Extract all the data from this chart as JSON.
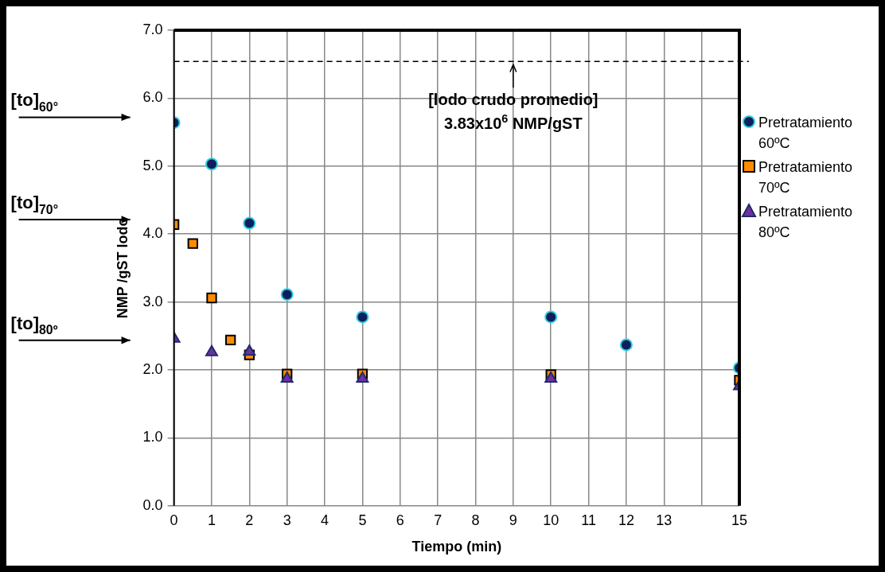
{
  "chart_data": {
    "type": "scatter",
    "xlabel": "Tiempo (min)",
    "ylabel": "NMP /gST lodo",
    "xlim": [
      0,
      15
    ],
    "xticks": [
      0,
      1,
      2,
      3,
      4,
      5,
      6,
      7,
      8,
      9,
      10,
      11,
      12,
      13,
      {
        "value": 14,
        "label": null
      },
      15
    ],
    "ylim": [
      0,
      7
    ],
    "yticks": [
      {
        "value": 0,
        "label": "0.0"
      },
      {
        "value": 1,
        "label": "1.0"
      },
      {
        "value": 2,
        "label": "2.0"
      },
      {
        "value": 3,
        "label": "3.0"
      },
      {
        "value": 4,
        "label": "4.0"
      },
      {
        "value": 5,
        "label": "5.0"
      },
      {
        "value": 6,
        "label": "6.0"
      },
      {
        "value": 7,
        "label": "7.0"
      }
    ],
    "grid": true,
    "legend": "right",
    "series": [
      {
        "name": "Pretratamiento 60ºC",
        "color": "#0d1f5c",
        "marker": "circle",
        "x": [
          0,
          1,
          2,
          3,
          5,
          10,
          12,
          15
        ],
        "values": [
          5.64,
          5.03,
          4.16,
          3.11,
          2.78,
          2.78,
          2.37,
          2.03
        ]
      },
      {
        "name": "Pretratamiento 70ºC",
        "color": "#ff8c00",
        "marker": "square",
        "x": [
          0,
          0.5,
          1,
          1.5,
          2,
          3,
          5,
          10,
          15
        ],
        "values": [
          4.14,
          3.86,
          3.06,
          2.44,
          2.22,
          1.94,
          1.94,
          1.93,
          1.85
        ]
      },
      {
        "name": "Pretratamiento 80ºC",
        "color": "#7030a0",
        "marker": "triangle",
        "x": [
          0,
          1,
          2,
          3,
          5,
          10,
          15
        ],
        "values": [
          2.46,
          2.26,
          2.27,
          1.87,
          1.87,
          1.87,
          1.76
        ]
      }
    ],
    "ref_lines": [
      {
        "axis": "y",
        "value": 6.54,
        "label": "[lodo crudo promedio] 3.83x10$^{6}$ NMP/gST",
        "line_style": "dashed",
        "color": "#000000"
      }
    ],
    "annotations": [
      "[to]$_{60°}$",
      "[to]$_{70°}$",
      "[to]$_{80º}$"
    ]
  }
}
